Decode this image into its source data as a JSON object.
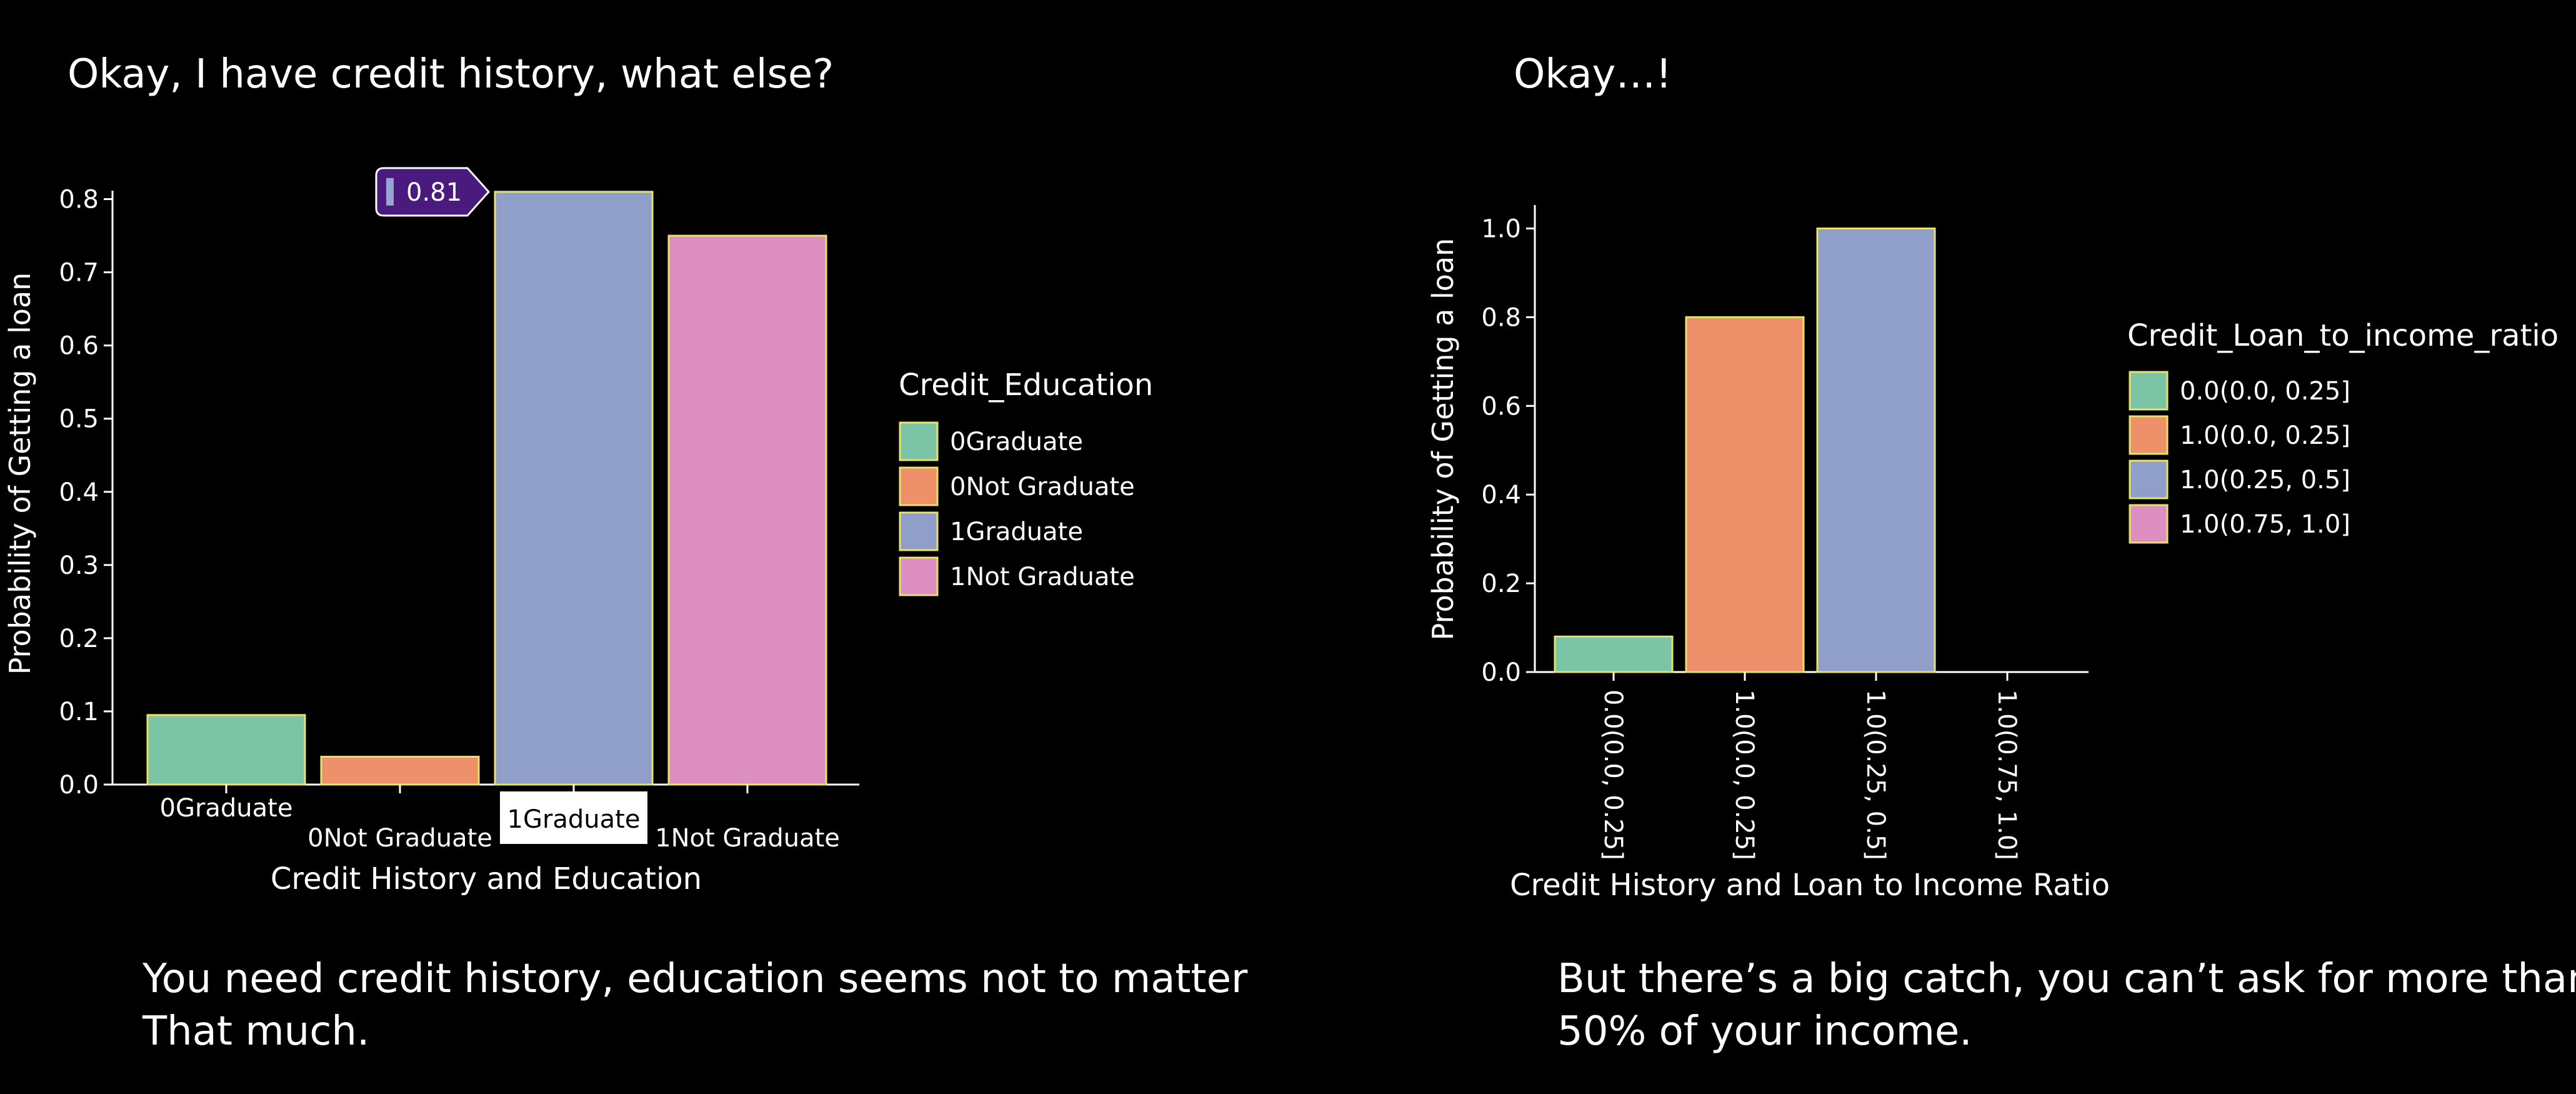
{
  "slide": {
    "left_title": "Okay, I have credit history, what else?",
    "right_title": "Okay…!",
    "left_caption": [
      "You need credit history, education seems not to matter",
      "That much."
    ],
    "right_caption": [
      "But there’s a big catch, you can’t ask for more than",
      "50% of your income."
    ]
  },
  "colors": {
    "background": "#000000",
    "bar_edge": "#e8e26a",
    "tooltip_bg": "#4b1a7e",
    "tooltip_marker": "#9aa3d4"
  },
  "chart_data": [
    {
      "type": "bar",
      "categories": [
        "0Graduate",
        "0Not Graduate",
        "1Graduate",
        "1Not Graduate"
      ],
      "values": [
        0.095,
        0.038,
        0.81,
        0.75
      ],
      "colors": [
        "#7cc4a6",
        "#ee906a",
        "#8f9fc9",
        "#dc8fc0"
      ],
      "xlabel": "Credit History and Education",
      "ylabel": "Probability of Getting a loan",
      "ylim": [
        0,
        0.85
      ],
      "yticks": [
        0.0,
        0.1,
        0.2,
        0.3,
        0.4,
        0.5,
        0.6,
        0.7,
        0.8
      ],
      "ytick_labels": [
        "0.0",
        "0.1",
        "0.2",
        "0.3",
        "0.4",
        "0.5",
        "0.6",
        "0.7",
        "0.8"
      ],
      "legend_title": "Credit_Education",
      "legend": [
        "0Graduate",
        "0Not Graduate",
        "1Graduate",
        "1Not Graduate"
      ],
      "legend_position": "right",
      "tooltip": {
        "category": "1Graduate",
        "label": "0.81"
      },
      "grid": false
    },
    {
      "type": "bar",
      "categories": [
        "0.0(0.0, 0.25]",
        "1.0(0.0, 0.25]",
        "1.0(0.25, 0.5]",
        "1.0(0.75, 1.0]"
      ],
      "values": [
        0.08,
        0.8,
        1.0,
        0.0
      ],
      "colors": [
        "#7cc4a6",
        "#ee906a",
        "#8f9fc9",
        "#dc8fc0"
      ],
      "xlabel": "Credit History and Loan to Income Ratio",
      "ylabel": "Probability of Getting a loan",
      "ylim": [
        0,
        1.05
      ],
      "yticks": [
        0.0,
        0.2,
        0.4,
        0.6,
        0.8,
        1.0
      ],
      "ytick_labels": [
        "0.0",
        "0.2",
        "0.4",
        "0.6",
        "0.8",
        "1.0"
      ],
      "legend_title": "Credit_Loan_to_income_ratio",
      "legend": [
        "0.0(0.0, 0.25]",
        "1.0(0.0, 0.25]",
        "1.0(0.25, 0.5]",
        "1.0(0.75, 1.0]"
      ],
      "legend_position": "right",
      "grid": false
    }
  ]
}
